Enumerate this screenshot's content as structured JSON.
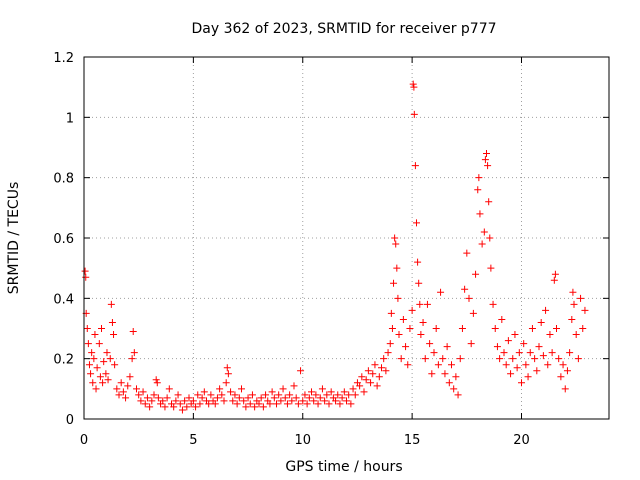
{
  "chart_data": {
    "type": "scatter",
    "title": "Day 362 of 2023, SRMTID for receiver p777",
    "xlabel": "GPS time / hours",
    "ylabel": "SRMTID / TECUs",
    "xlim": [
      0,
      24
    ],
    "ylim": [
      0,
      1.2
    ],
    "xticks": [
      0,
      5,
      10,
      15,
      20
    ],
    "xtick_labels": [
      "0",
      "5",
      "10",
      "15",
      "20"
    ],
    "yticks": [
      0,
      0.2,
      0.4,
      0.6,
      0.8,
      1,
      1.2
    ],
    "ytick_labels": [
      "0",
      "0.2",
      "0.4",
      "0.6",
      "0.8",
      "1",
      "1.2"
    ],
    "grid": true,
    "marker": "+",
    "color": "#ff0000",
    "series": [
      {
        "name": "p777",
        "points": [
          [
            0.05,
            0.49
          ],
          [
            0.08,
            0.47
          ],
          [
            0.1,
            0.35
          ],
          [
            0.15,
            0.3
          ],
          [
            0.2,
            0.25
          ],
          [
            0.25,
            0.18
          ],
          [
            0.3,
            0.15
          ],
          [
            0.35,
            0.22
          ],
          [
            0.4,
            0.12
          ],
          [
            0.45,
            0.2
          ],
          [
            0.5,
            0.28
          ],
          [
            0.55,
            0.1
          ],
          [
            0.6,
            0.17
          ],
          [
            0.7,
            0.25
          ],
          [
            0.75,
            0.14
          ],
          [
            0.8,
            0.3
          ],
          [
            0.85,
            0.12
          ],
          [
            0.9,
            0.19
          ],
          [
            1.0,
            0.15
          ],
          [
            1.05,
            0.22
          ],
          [
            1.1,
            0.13
          ],
          [
            1.2,
            0.2
          ],
          [
            1.25,
            0.38
          ],
          [
            1.3,
            0.32
          ],
          [
            1.35,
            0.28
          ],
          [
            1.4,
            0.18
          ],
          [
            1.5,
            0.1
          ],
          [
            1.6,
            0.08
          ],
          [
            1.7,
            0.12
          ],
          [
            1.8,
            0.09
          ],
          [
            1.9,
            0.07
          ],
          [
            2.0,
            0.11
          ],
          [
            2.1,
            0.14
          ],
          [
            2.2,
            0.2
          ],
          [
            2.25,
            0.29
          ],
          [
            2.3,
            0.22
          ],
          [
            2.4,
            0.1
          ],
          [
            2.5,
            0.08
          ],
          [
            2.6,
            0.06
          ],
          [
            2.7,
            0.09
          ],
          [
            2.8,
            0.05
          ],
          [
            2.9,
            0.07
          ],
          [
            3.0,
            0.04
          ],
          [
            3.1,
            0.06
          ],
          [
            3.2,
            0.08
          ],
          [
            3.3,
            0.13
          ],
          [
            3.35,
            0.12
          ],
          [
            3.4,
            0.07
          ],
          [
            3.5,
            0.05
          ],
          [
            3.6,
            0.06
          ],
          [
            3.7,
            0.04
          ],
          [
            3.8,
            0.07
          ],
          [
            3.9,
            0.1
          ],
          [
            4.0,
            0.05
          ],
          [
            4.1,
            0.04
          ],
          [
            4.2,
            0.06
          ],
          [
            4.3,
            0.08
          ],
          [
            4.4,
            0.05
          ],
          [
            4.5,
            0.03
          ],
          [
            4.6,
            0.06
          ],
          [
            4.7,
            0.04
          ],
          [
            4.8,
            0.07
          ],
          [
            4.9,
            0.05
          ],
          [
            5.0,
            0.06
          ],
          [
            5.1,
            0.04
          ],
          [
            5.2,
            0.08
          ],
          [
            5.3,
            0.05
          ],
          [
            5.4,
            0.07
          ],
          [
            5.5,
            0.09
          ],
          [
            5.6,
            0.06
          ],
          [
            5.7,
            0.05
          ],
          [
            5.8,
            0.08
          ],
          [
            5.9,
            0.06
          ],
          [
            6.0,
            0.05
          ],
          [
            6.1,
            0.07
          ],
          [
            6.2,
            0.1
          ],
          [
            6.3,
            0.08
          ],
          [
            6.4,
            0.06
          ],
          [
            6.5,
            0.12
          ],
          [
            6.55,
            0.17
          ],
          [
            6.6,
            0.15
          ],
          [
            6.7,
            0.09
          ],
          [
            6.8,
            0.06
          ],
          [
            6.9,
            0.08
          ],
          [
            7.0,
            0.05
          ],
          [
            7.1,
            0.07
          ],
          [
            7.2,
            0.1
          ],
          [
            7.3,
            0.06
          ],
          [
            7.4,
            0.04
          ],
          [
            7.5,
            0.07
          ],
          [
            7.6,
            0.05
          ],
          [
            7.7,
            0.08
          ],
          [
            7.8,
            0.04
          ],
          [
            7.9,
            0.06
          ],
          [
            8.0,
            0.05
          ],
          [
            8.1,
            0.07
          ],
          [
            8.2,
            0.04
          ],
          [
            8.3,
            0.08
          ],
          [
            8.4,
            0.06
          ],
          [
            8.5,
            0.05
          ],
          [
            8.6,
            0.09
          ],
          [
            8.7,
            0.07
          ],
          [
            8.8,
            0.05
          ],
          [
            8.9,
            0.08
          ],
          [
            9.0,
            0.06
          ],
          [
            9.1,
            0.1
          ],
          [
            9.2,
            0.07
          ],
          [
            9.3,
            0.05
          ],
          [
            9.4,
            0.08
          ],
          [
            9.5,
            0.06
          ],
          [
            9.6,
            0.11
          ],
          [
            9.7,
            0.07
          ],
          [
            9.8,
            0.05
          ],
          [
            9.9,
            0.16
          ],
          [
            10.0,
            0.06
          ],
          [
            10.1,
            0.08
          ],
          [
            10.2,
            0.05
          ],
          [
            10.3,
            0.07
          ],
          [
            10.4,
            0.09
          ],
          [
            10.5,
            0.06
          ],
          [
            10.6,
            0.08
          ],
          [
            10.7,
            0.05
          ],
          [
            10.8,
            0.07
          ],
          [
            10.9,
            0.1
          ],
          [
            11.0,
            0.06
          ],
          [
            11.1,
            0.08
          ],
          [
            11.2,
            0.05
          ],
          [
            11.3,
            0.09
          ],
          [
            11.4,
            0.07
          ],
          [
            11.5,
            0.06
          ],
          [
            11.6,
            0.08
          ],
          [
            11.7,
            0.05
          ],
          [
            11.8,
            0.07
          ],
          [
            11.9,
            0.09
          ],
          [
            12.0,
            0.06
          ],
          [
            12.1,
            0.08
          ],
          [
            12.2,
            0.05
          ],
          [
            12.3,
            0.1
          ],
          [
            12.4,
            0.08
          ],
          [
            12.5,
            0.12
          ],
          [
            12.6,
            0.11
          ],
          [
            12.7,
            0.14
          ],
          [
            12.8,
            0.09
          ],
          [
            12.9,
            0.13
          ],
          [
            13.0,
            0.16
          ],
          [
            13.1,
            0.12
          ],
          [
            13.2,
            0.15
          ],
          [
            13.3,
            0.18
          ],
          [
            13.4,
            0.11
          ],
          [
            13.5,
            0.14
          ],
          [
            13.6,
            0.17
          ],
          [
            13.7,
            0.2
          ],
          [
            13.8,
            0.16
          ],
          [
            13.9,
            0.22
          ],
          [
            14.0,
            0.25
          ],
          [
            14.05,
            0.35
          ],
          [
            14.1,
            0.3
          ],
          [
            14.15,
            0.45
          ],
          [
            14.2,
            0.6
          ],
          [
            14.25,
            0.58
          ],
          [
            14.3,
            0.5
          ],
          [
            14.35,
            0.4
          ],
          [
            14.4,
            0.28
          ],
          [
            14.5,
            0.2
          ],
          [
            14.6,
            0.33
          ],
          [
            14.7,
            0.24
          ],
          [
            14.8,
            0.18
          ],
          [
            14.9,
            0.3
          ],
          [
            15.0,
            0.36
          ],
          [
            15.05,
            1.11
          ],
          [
            15.08,
            1.1
          ],
          [
            15.1,
            1.01
          ],
          [
            15.15,
            0.84
          ],
          [
            15.2,
            0.65
          ],
          [
            15.25,
            0.52
          ],
          [
            15.3,
            0.45
          ],
          [
            15.35,
            0.38
          ],
          [
            15.4,
            0.28
          ],
          [
            15.5,
            0.32
          ],
          [
            15.6,
            0.2
          ],
          [
            15.7,
            0.38
          ],
          [
            15.8,
            0.25
          ],
          [
            15.9,
            0.15
          ],
          [
            16.0,
            0.22
          ],
          [
            16.1,
            0.3
          ],
          [
            16.2,
            0.18
          ],
          [
            16.3,
            0.42
          ],
          [
            16.4,
            0.2
          ],
          [
            16.5,
            0.15
          ],
          [
            16.6,
            0.24
          ],
          [
            16.7,
            0.12
          ],
          [
            16.8,
            0.18
          ],
          [
            16.9,
            0.1
          ],
          [
            17.0,
            0.14
          ],
          [
            17.1,
            0.08
          ],
          [
            17.2,
            0.2
          ],
          [
            17.3,
            0.3
          ],
          [
            17.4,
            0.43
          ],
          [
            17.5,
            0.55
          ],
          [
            17.6,
            0.4
          ],
          [
            17.7,
            0.25
          ],
          [
            17.8,
            0.35
          ],
          [
            17.9,
            0.48
          ],
          [
            18.0,
            0.76
          ],
          [
            18.05,
            0.8
          ],
          [
            18.1,
            0.68
          ],
          [
            18.2,
            0.58
          ],
          [
            18.3,
            0.62
          ],
          [
            18.35,
            0.86
          ],
          [
            18.4,
            0.88
          ],
          [
            18.45,
            0.84
          ],
          [
            18.5,
            0.72
          ],
          [
            18.55,
            0.6
          ],
          [
            18.6,
            0.5
          ],
          [
            18.7,
            0.38
          ],
          [
            18.8,
            0.3
          ],
          [
            18.9,
            0.24
          ],
          [
            19.0,
            0.2
          ],
          [
            19.1,
            0.33
          ],
          [
            19.2,
            0.22
          ],
          [
            19.3,
            0.18
          ],
          [
            19.4,
            0.26
          ],
          [
            19.5,
            0.15
          ],
          [
            19.6,
            0.2
          ],
          [
            19.7,
            0.28
          ],
          [
            19.8,
            0.17
          ],
          [
            19.9,
            0.22
          ],
          [
            20.0,
            0.12
          ],
          [
            20.1,
            0.25
          ],
          [
            20.2,
            0.18
          ],
          [
            20.3,
            0.14
          ],
          [
            20.4,
            0.22
          ],
          [
            20.5,
            0.3
          ],
          [
            20.6,
            0.2
          ],
          [
            20.7,
            0.16
          ],
          [
            20.8,
            0.24
          ],
          [
            20.9,
            0.32
          ],
          [
            21.0,
            0.21
          ],
          [
            21.1,
            0.36
          ],
          [
            21.2,
            0.18
          ],
          [
            21.3,
            0.28
          ],
          [
            21.4,
            0.22
          ],
          [
            21.5,
            0.46
          ],
          [
            21.55,
            0.48
          ],
          [
            21.6,
            0.3
          ],
          [
            21.7,
            0.2
          ],
          [
            21.8,
            0.14
          ],
          [
            21.9,
            0.18
          ],
          [
            22.0,
            0.1
          ],
          [
            22.1,
            0.16
          ],
          [
            22.2,
            0.22
          ],
          [
            22.3,
            0.33
          ],
          [
            22.35,
            0.42
          ],
          [
            22.4,
            0.38
          ],
          [
            22.5,
            0.28
          ],
          [
            22.6,
            0.2
          ],
          [
            22.7,
            0.4
          ],
          [
            22.8,
            0.3
          ],
          [
            22.9,
            0.36
          ]
        ]
      }
    ]
  }
}
